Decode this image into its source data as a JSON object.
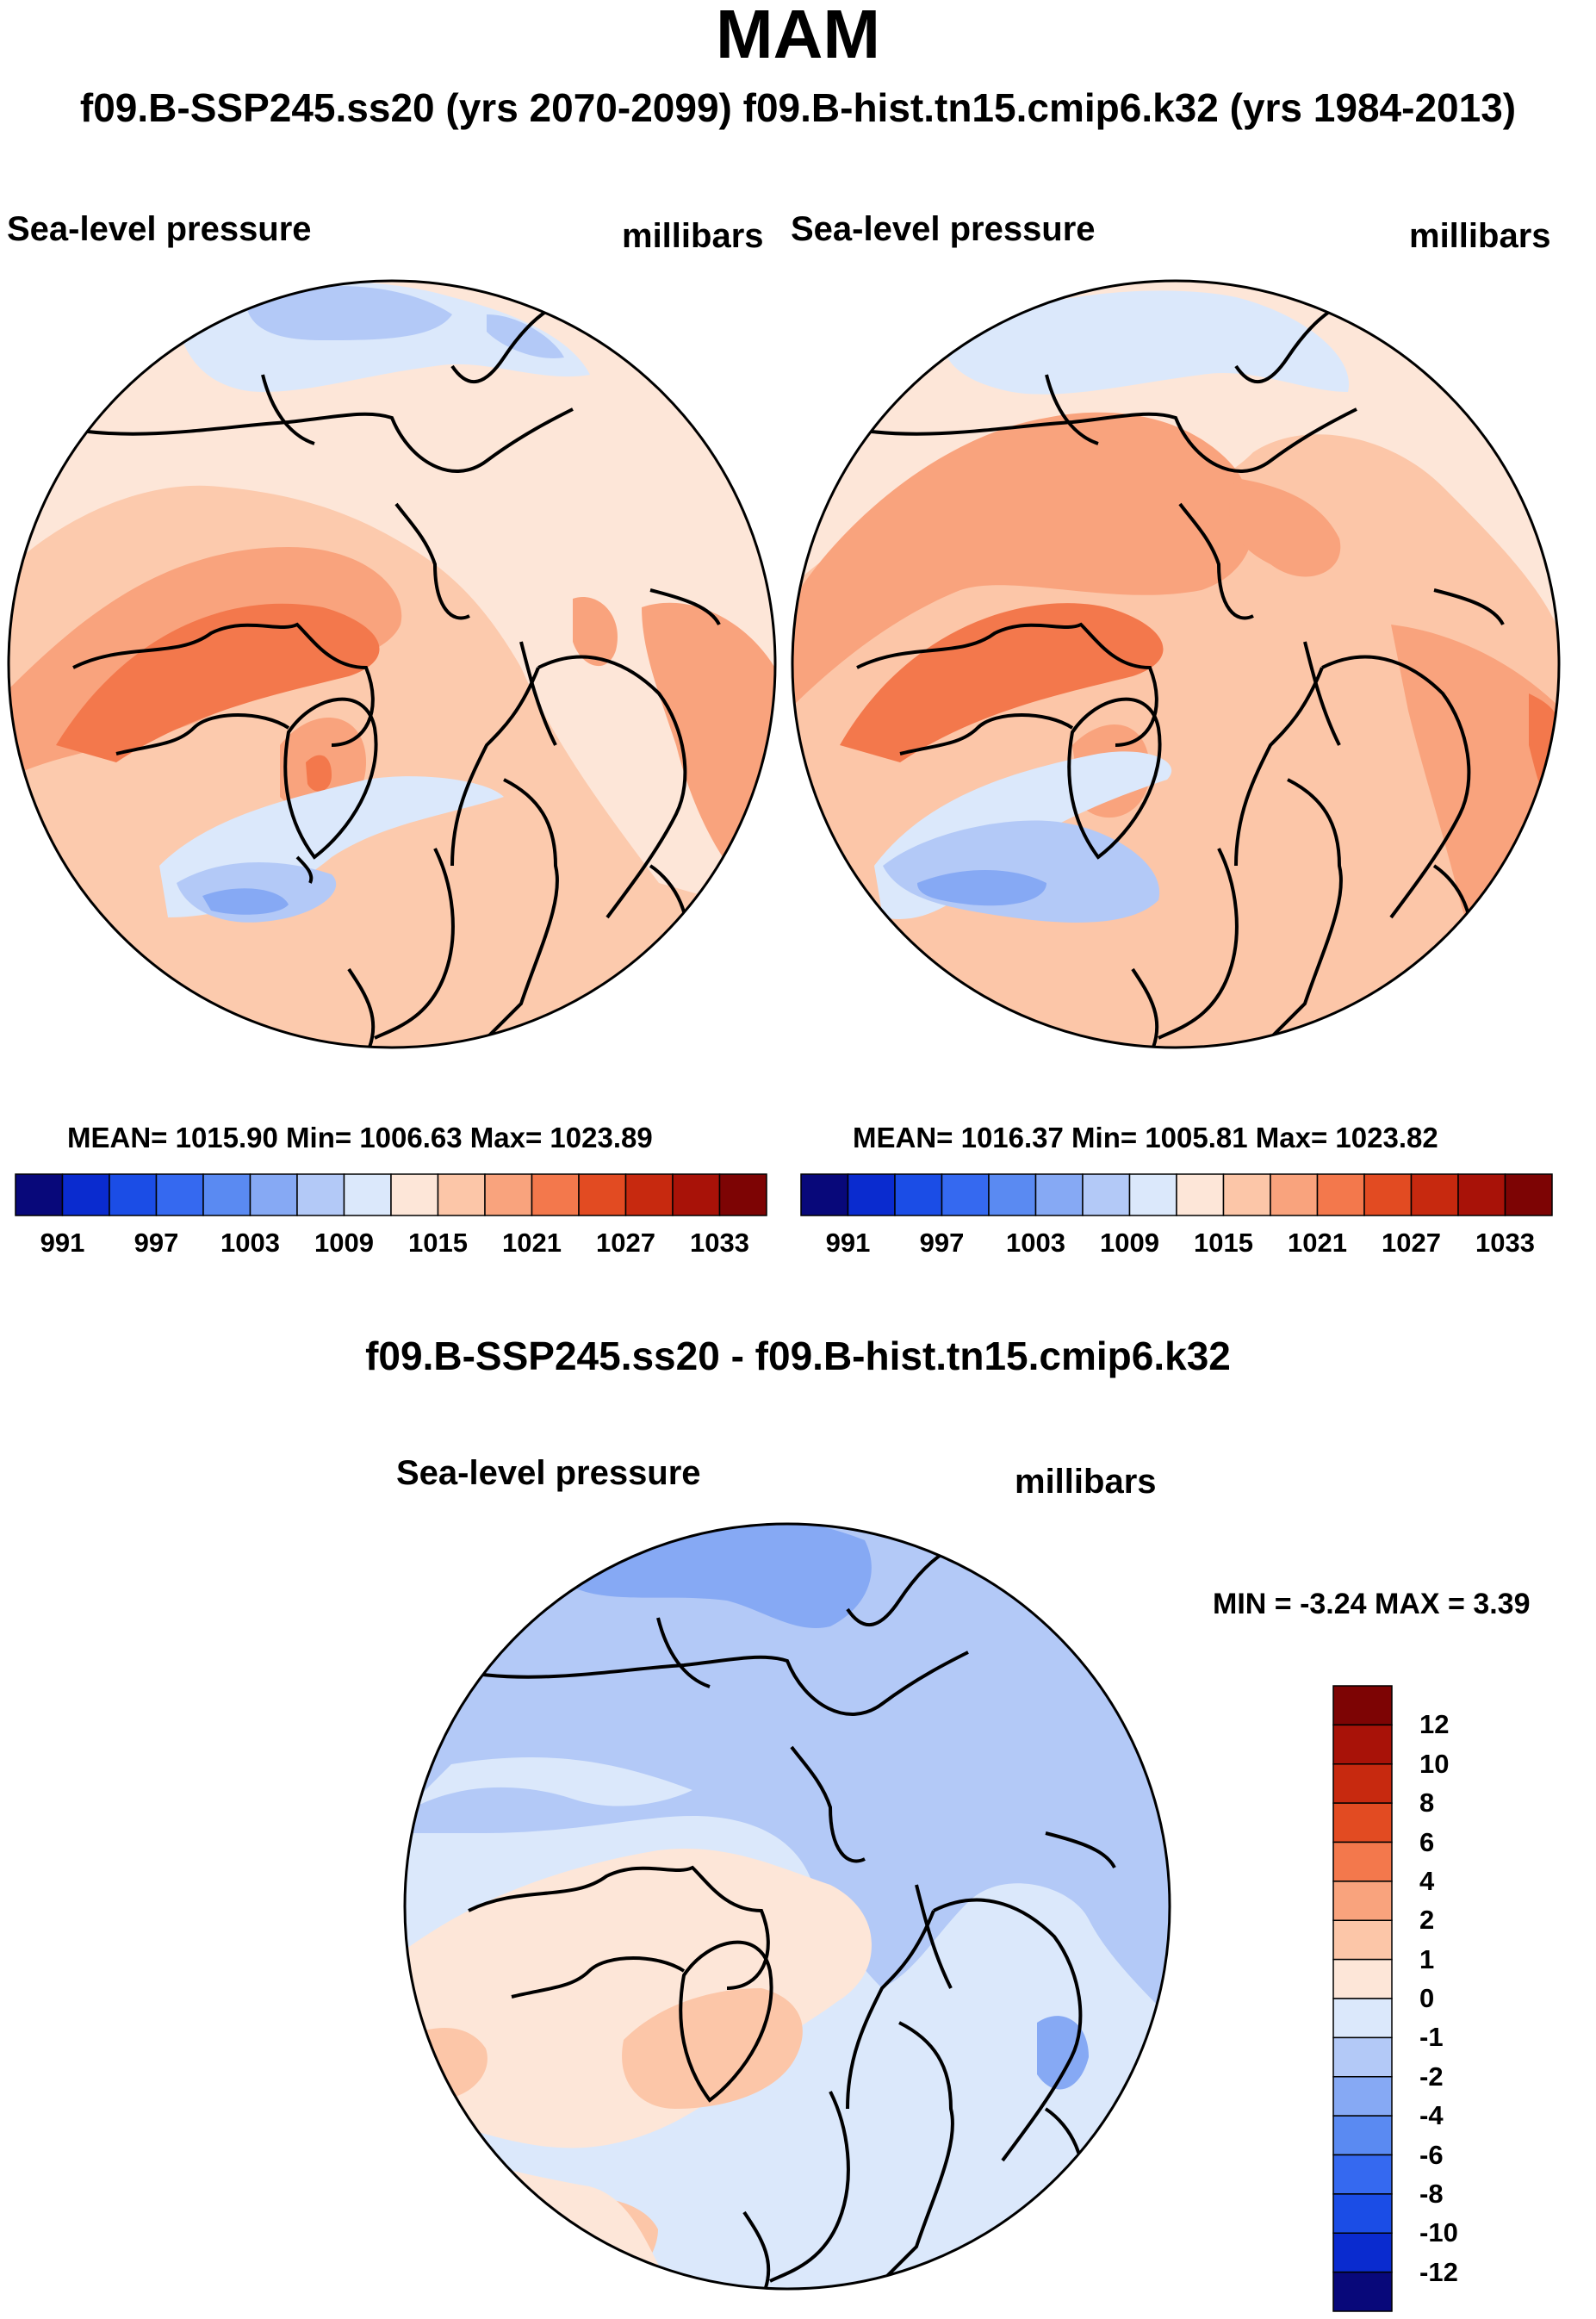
{
  "title": "MAM",
  "panel_header": "f09.B-SSP245.ss20 (yrs 2070-2099)  f09.B-hist.tn15.cmip6.k32 (yrs 1984-2013)",
  "difference_header": "f09.B-SSP245.ss20 - f09.B-hist.tn15.cmip6.k32",
  "panels": [
    {
      "name": "f09.B-SSP245.ss20 (yrs 2070-2099)",
      "variable": "Sea-level pressure",
      "units": "millibars",
      "stats": "MEAN= 1015.90  Min= 1006.63  Max= 1023.89",
      "mean": 1015.9,
      "min": 1006.63,
      "max": 1023.89
    },
    {
      "name": "f09.B-hist.tn15.cmip6.k32 (yrs 1984-2013)",
      "variable": "Sea-level pressure",
      "units": "millibars",
      "stats": "MEAN= 1016.37  Min= 1005.81  Max= 1023.82",
      "mean": 1016.37,
      "min": 1005.81,
      "max": 1023.82
    },
    {
      "name": "f09.B-SSP245.ss20 - f09.B-hist.tn15.cmip6.k32",
      "variable": "Sea-level pressure",
      "units": "millibars",
      "stats": "MIN =  -3.24 MAX =    3.39",
      "min": -3.24,
      "max": 3.39
    }
  ],
  "abs_colorbar": {
    "levels": [
      991,
      994,
      997,
      1000,
      1003,
      1006,
      1009,
      1012,
      1015,
      1018,
      1021,
      1024,
      1027,
      1030,
      1033
    ],
    "tick_labels": [
      "991",
      "997",
      "1003",
      "1009",
      "1015",
      "1021",
      "1027",
      "1033"
    ],
    "colors": [
      "#08087a",
      "#0a2bcf",
      "#1b4de6",
      "#3569f0",
      "#5a8af2",
      "#86a9f4",
      "#b3c9f7",
      "#dbe8fb",
      "#fde6d8",
      "#fcc6a8",
      "#f9a37d",
      "#f3784c",
      "#e24b22",
      "#c7290f",
      "#a81208",
      "#7d0404"
    ]
  },
  "diff_colorbar": {
    "levels": [
      -12,
      -10,
      -8,
      -6,
      -4,
      -2,
      -1,
      0,
      1,
      2,
      4,
      6,
      8,
      10,
      12
    ],
    "tick_labels": [
      "12",
      "10",
      "8",
      "6",
      "4",
      "2",
      "1",
      "0",
      "-1",
      "-2",
      "-4",
      "-6",
      "-8",
      "-10",
      "-12"
    ],
    "colors": [
      "#08087a",
      "#0a2bcf",
      "#1b4de6",
      "#3569f0",
      "#5a8af2",
      "#86a9f4",
      "#b3c9f7",
      "#dbe8fb",
      "#fde6d8",
      "#fcc6a8",
      "#f9a37d",
      "#f3784c",
      "#e24b22",
      "#c7290f",
      "#a81208",
      "#7d0404"
    ]
  }
}
